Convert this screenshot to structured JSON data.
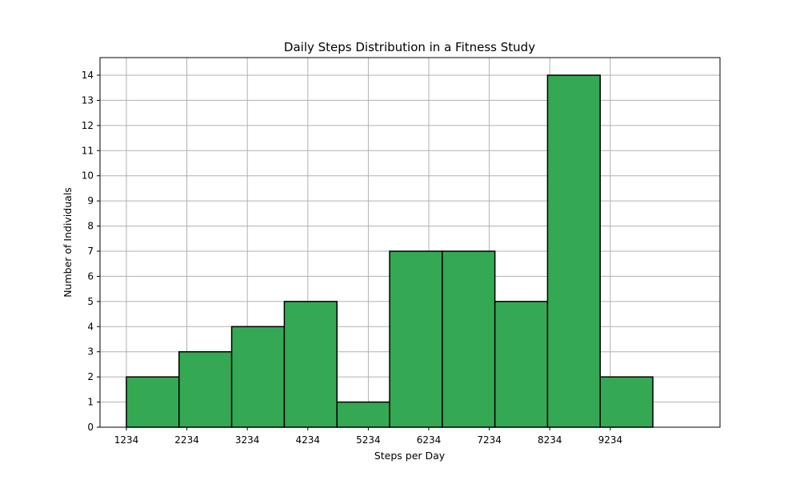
{
  "chart_data": {
    "type": "bar",
    "title": "Daily Steps Distribution in a Fitness Study",
    "xlabel": "Steps per Day",
    "ylabel": "Number of Individuals",
    "bin_edges": [
      1234,
      2104.4,
      2974.8,
      3845.2,
      4715.6,
      5586,
      6456.4,
      7326.8,
      8197.2,
      9067.6,
      9938
    ],
    "values": [
      2,
      3,
      4,
      5,
      1,
      7,
      7,
      5,
      14,
      2
    ],
    "x_ticks": [
      1234,
      2234,
      3234,
      4234,
      5234,
      6234,
      7234,
      8234,
      9234
    ],
    "y_ticks": [
      0,
      1,
      2,
      3,
      4,
      5,
      6,
      7,
      8,
      9,
      10,
      11,
      12,
      13,
      14
    ],
    "xlim": [
      798,
      11048
    ],
    "ylim": [
      0,
      14.7
    ],
    "grid": true,
    "bar_color": "#34a853",
    "edge_color": "#000000"
  }
}
